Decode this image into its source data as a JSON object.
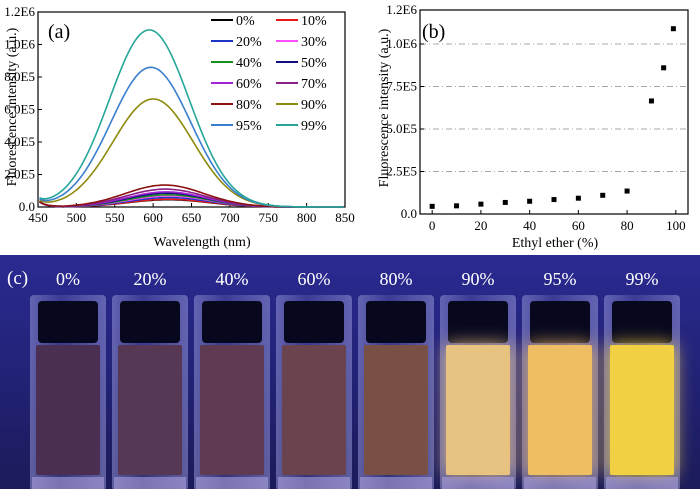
{
  "colors": {
    "axis": "#000000",
    "gridline": "#8c8c8c",
    "series": [
      "#000000",
      "#e8171a",
      "#1d36c8",
      "#ff4fff",
      "#1b8f1b",
      "#101080",
      "#a223d4",
      "#8a1f86",
      "#8c1212",
      "#8e8a0b",
      "#3a7fcf",
      "#26a69a"
    ]
  },
  "chart_data": [
    {
      "panel": "(a)",
      "type": "line",
      "xlabel": "Wavelength (nm)",
      "ylabel": "Fluorescence intensity (a.u.)",
      "xlim": [
        450,
        850
      ],
      "ylim": [
        0,
        1200000
      ],
      "xticks": [
        450,
        500,
        550,
        600,
        650,
        700,
        750,
        800,
        850
      ],
      "ytick_values": [
        0,
        200000,
        400000,
        600000,
        800000,
        1000000,
        1200000
      ],
      "ytick_labels": [
        "0.0",
        "2.0E5",
        "4.0E5",
        "6.0E5",
        "8.0E5",
        "1.0E6",
        "1.2E6"
      ],
      "legend_position": "top-right",
      "series": [
        {
          "name": "0%",
          "peak_x": 620,
          "peak_y": 45000
        },
        {
          "name": "10%",
          "peak_x": 620,
          "peak_y": 48000
        },
        {
          "name": "20%",
          "peak_x": 620,
          "peak_y": 58000
        },
        {
          "name": "30%",
          "peak_x": 620,
          "peak_y": 68000
        },
        {
          "name": "40%",
          "peak_x": 619,
          "peak_y": 75000
        },
        {
          "name": "50%",
          "peak_x": 618,
          "peak_y": 85000
        },
        {
          "name": "60%",
          "peak_x": 617,
          "peak_y": 93000
        },
        {
          "name": "70%",
          "peak_x": 616,
          "peak_y": 110000
        },
        {
          "name": "80%",
          "peak_x": 615,
          "peak_y": 135000
        },
        {
          "name": "90%",
          "peak_x": 600,
          "peak_y": 665000
        },
        {
          "name": "95%",
          "peak_x": 597,
          "peak_y": 860000
        },
        {
          "name": "99%",
          "peak_x": 595,
          "peak_y": 1090000
        }
      ]
    },
    {
      "panel": "(b)",
      "type": "scatter",
      "xlabel": "Ethyl ether (%)",
      "ylabel": "Fluorescence intensity (a.u.)",
      "xlim": [
        -5,
        105
      ],
      "ylim": [
        0,
        1200000
      ],
      "xticks": [
        0,
        20,
        40,
        60,
        80,
        100
      ],
      "ytick_values": [
        0,
        250000,
        500000,
        750000,
        1000000,
        1200000
      ],
      "ytick_labels": [
        "0.0",
        "2.5E5",
        "5.0E5",
        "7.5E5",
        "1.0E6",
        "1.2E6"
      ],
      "grid": true,
      "x": [
        0,
        10,
        20,
        30,
        40,
        50,
        60,
        70,
        80,
        90,
        95,
        99
      ],
      "y": [
        45000,
        48000,
        58000,
        68000,
        75000,
        85000,
        93000,
        110000,
        135000,
        665000,
        860000,
        1090000
      ]
    }
  ],
  "photo": {
    "label": "(c)",
    "samples": [
      {
        "label": "0%",
        "color": "#4a2f52"
      },
      {
        "label": "20%",
        "color": "#563854"
      },
      {
        "label": "40%",
        "color": "#5e3b50"
      },
      {
        "label": "60%",
        "color": "#6a434e"
      },
      {
        "label": "80%",
        "color": "#7a5046"
      },
      {
        "label": "90%",
        "color": "#e8c280"
      },
      {
        "label": "95%",
        "color": "#efbd64"
      },
      {
        "label": "99%",
        "color": "#f2d044"
      }
    ]
  }
}
